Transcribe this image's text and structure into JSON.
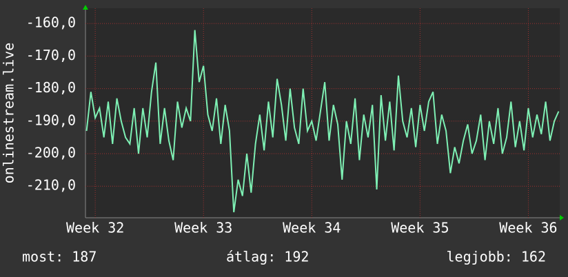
{
  "chart_data": {
    "type": "line",
    "y_label": "onlinestream.live",
    "x": [
      31.92,
      31.96,
      32,
      32.04,
      32.08,
      32.12,
      32.16,
      32.2,
      32.24,
      32.28,
      32.32,
      32.36,
      32.4,
      32.44,
      32.48,
      32.52,
      32.56,
      32.6,
      32.64,
      32.68,
      32.72,
      32.76,
      32.8,
      32.84,
      32.88,
      32.92,
      32.96,
      33,
      33.04,
      33.08,
      33.12,
      33.16,
      33.2,
      33.24,
      33.28,
      33.32,
      33.36,
      33.4,
      33.44,
      33.48,
      33.52,
      33.56,
      33.6,
      33.64,
      33.68,
      33.72,
      33.76,
      33.8,
      33.84,
      33.88,
      33.92,
      33.96,
      34,
      34.04,
      34.08,
      34.12,
      34.16,
      34.2,
      34.24,
      34.28,
      34.32,
      34.36,
      34.4,
      34.44,
      34.48,
      34.52,
      34.56,
      34.6,
      34.64,
      34.68,
      34.72,
      34.76,
      34.8,
      34.84,
      34.88,
      34.92,
      34.96,
      35,
      35.04,
      35.08,
      35.12,
      35.16,
      35.2,
      35.24,
      35.28,
      35.32,
      35.36,
      35.4,
      35.44,
      35.48,
      35.52,
      35.56,
      35.6,
      35.64,
      35.68,
      35.72,
      35.76,
      35.8,
      35.84,
      35.88,
      35.92,
      35.96,
      36,
      36.04,
      36.08,
      36.12,
      36.16,
      36.2,
      36.24,
      36.28
    ],
    "series": [
      {
        "color": "#7ef0b4",
        "values": [
          -193,
          -181,
          -189,
          -186,
          -195,
          -184,
          -197,
          -183,
          -190,
          -195,
          -197,
          -186,
          -200,
          -186,
          -195,
          -181,
          -172,
          -197,
          -186,
          -196,
          -202,
          -184,
          -192,
          -186,
          -190,
          -162,
          -178,
          -173,
          -188,
          -193,
          -183,
          -197,
          -185,
          -193,
          -218,
          -208,
          -213,
          -200,
          -212,
          -197,
          -188,
          -199,
          -184,
          -195,
          -177,
          -185,
          -196,
          -180,
          -192,
          -197,
          -180,
          -193,
          -190,
          -196,
          -187,
          -178,
          -196,
          -185,
          -191,
          -208,
          -190,
          -197,
          -183,
          -202,
          -188,
          -195,
          -185,
          -211,
          -182,
          -196,
          -184,
          -199,
          -176,
          -190,
          -195,
          -186,
          -198,
          -185,
          -193,
          -184,
          -181,
          -197,
          -188,
          -193,
          -206,
          -198,
          -203,
          -196,
          -191,
          -200,
          -196,
          -188,
          -202,
          -190,
          -197,
          -186,
          -200,
          -195,
          -184,
          -198,
          -190,
          -199,
          -186,
          -195,
          -188,
          -194,
          -184,
          -196,
          -190,
          -187
        ]
      }
    ],
    "xlim": [
      31.91,
      36.29
    ],
    "xticks": [
      {
        "value": 32,
        "label": "Week 32"
      },
      {
        "value": 33,
        "label": "Week 33"
      },
      {
        "value": 34,
        "label": "Week 34"
      },
      {
        "value": 35,
        "label": "Week 35"
      },
      {
        "value": 36,
        "label": "Week 36"
      }
    ],
    "ylim": [
      -219.7,
      -155.3
    ],
    "yticks": [
      {
        "value": -160,
        "label": "-160,0"
      },
      {
        "value": -170,
        "label": "-170,0"
      },
      {
        "value": -180,
        "label": "-180,0"
      },
      {
        "value": -190,
        "label": "-190,0"
      },
      {
        "value": -200,
        "label": "-200,0"
      },
      {
        "value": -210,
        "label": "-210,0"
      }
    ],
    "grid": true
  },
  "footer": {
    "current": "most: 187",
    "average": "átlag: 192",
    "best": "legjobb: 162"
  }
}
